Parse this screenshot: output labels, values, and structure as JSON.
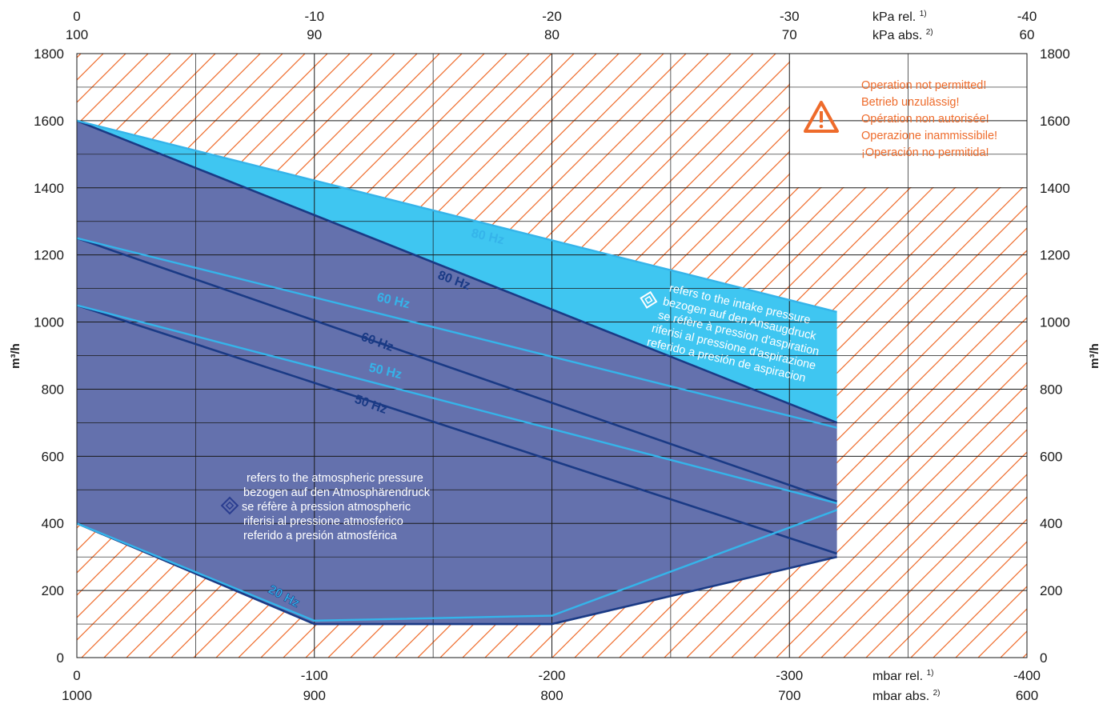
{
  "chart_data": {
    "type": "area",
    "x_axis": {
      "bottom_rel_label": "mbar rel.",
      "bottom_abs_label": "mbar abs.",
      "bottom_rel_ticks": [
        "0",
        "-100",
        "-200",
        "-300",
        "-400"
      ],
      "bottom_abs_ticks": [
        "1000",
        "900",
        "800",
        "700",
        "600"
      ],
      "top_rel_label": "kPa rel.",
      "top_abs_label": "kPa abs.",
      "top_rel_ticks": [
        "0",
        "-10",
        "-20",
        "-30",
        "-40"
      ],
      "top_abs_ticks": [
        "100",
        "90",
        "80",
        "70",
        "60"
      ],
      "rel_footnote": "1)",
      "abs_footnote": "2)",
      "xlim": [
        0,
        -400
      ]
    },
    "y_axis": {
      "label": "m³/h",
      "ticks": [
        "0",
        "200",
        "400",
        "600",
        "800",
        "1000",
        "1200",
        "1400",
        "1600",
        "1800"
      ],
      "ylim": [
        0,
        1800
      ]
    },
    "regions": [
      {
        "name": "atmospheric",
        "color": "#6471ad",
        "points": [
          [
            0,
            1600
          ],
          [
            -320,
            700
          ],
          [
            -320,
            300
          ],
          [
            -200,
            100
          ],
          [
            -100,
            100
          ],
          [
            0,
            400
          ]
        ]
      },
      {
        "name": "intake",
        "color": "#3fc6f1",
        "points": [
          [
            0,
            1600
          ],
          [
            -320,
            1030
          ],
          [
            -320,
            700
          ]
        ]
      }
    ],
    "series": [
      {
        "name": "80 Hz",
        "style": "dark",
        "points": [
          [
            0,
            1600
          ],
          [
            -320,
            700
          ]
        ]
      },
      {
        "name": "60 Hz",
        "style": "dark",
        "points": [
          [
            0,
            1250
          ],
          [
            -320,
            465
          ]
        ]
      },
      {
        "name": "50 Hz",
        "style": "dark",
        "points": [
          [
            0,
            1050
          ],
          [
            -320,
            310
          ]
        ]
      },
      {
        "name": "20 Hz",
        "style": "dark",
        "points": [
          [
            0,
            400
          ],
          [
            -100,
            100
          ],
          [
            -200,
            100
          ],
          [
            -320,
            300
          ]
        ]
      },
      {
        "name": "80 Hz",
        "style": "light",
        "points": [
          [
            0,
            1600
          ],
          [
            -320,
            1030
          ]
        ]
      },
      {
        "name": "60 Hz",
        "style": "light",
        "points": [
          [
            0,
            1250
          ],
          [
            -320,
            685
          ]
        ]
      },
      {
        "name": "50 Hz",
        "style": "light",
        "points": [
          [
            0,
            1050
          ],
          [
            -320,
            460
          ]
        ]
      },
      {
        "name": "20 Hz",
        "style": "light",
        "points": [
          [
            0,
            400
          ],
          [
            -100,
            110
          ],
          [
            -200,
            125
          ],
          [
            -320,
            440
          ]
        ]
      }
    ],
    "annotations": {
      "warning_lines": [
        "Operation not permitted!",
        "Betrieb unzulässig!",
        "Opération non autorisée!",
        "Operazione inammissibile!",
        "¡Operación no permitida!"
      ],
      "atmospheric_note_lines": [
        "refers to the atmospheric pressure",
        "bezogen auf den Atmosphärendruck",
        "se réfère à pression atmospheric",
        "riferisi al pressione atmosferico",
        "referido a presión atmosférica"
      ],
      "intake_note_lines": [
        "refers to the intake pressure",
        "bezogen auf den Ansaugdruck",
        "se réfère à pression d'aspiration",
        "riferisi al pressione d'aspirazione",
        "referido a presión de aspiracion"
      ]
    },
    "colors": {
      "hatch": "#ee6b2b",
      "grid": "#1a1a1a",
      "dark_line": "#1a3a85",
      "light_line": "#35b4ea",
      "warning": "#ee6b2b"
    }
  }
}
